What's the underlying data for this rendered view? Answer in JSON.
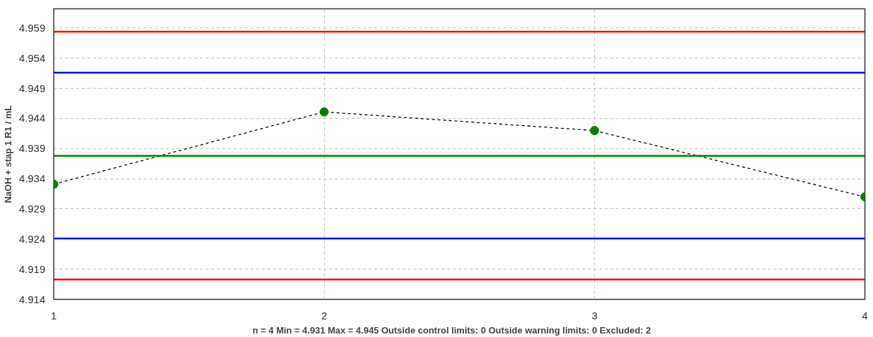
{
  "chart_data": {
    "type": "line",
    "xlabel": "n = 4  Min = 4.931  Max = 4.945   Outside control limits: 0  Outside warning limits: 0  Excluded: 2",
    "ylabel": "NaOH + stap 1 R1 / mL",
    "x": [
      1,
      2,
      3,
      4
    ],
    "series": [
      {
        "color": "#008000",
        "values": [
          4.9331,
          4.9451,
          4.942,
          4.931
        ]
      }
    ],
    "xlim": [
      1,
      4
    ],
    "xticks": [
      1,
      2,
      3,
      4
    ],
    "ylim": [
      4.914,
      4.9622
    ],
    "yticks": [
      4.914,
      4.919,
      4.924,
      4.929,
      4.934,
      4.939,
      4.944,
      4.949,
      4.954,
      4.959
    ],
    "ref_lines": [
      {
        "axis": "y",
        "value": 4.9584,
        "color": "#ff0000"
      },
      {
        "axis": "y",
        "value": 4.9516,
        "color": "#0000ff"
      },
      {
        "axis": "y",
        "value": 4.9378,
        "color": "#008000"
      },
      {
        "axis": "y",
        "value": 4.9241,
        "color": "#0000ff"
      },
      {
        "axis": "y",
        "value": 4.9173,
        "color": "#ff0000"
      }
    ],
    "grid": true,
    "marker": "circle",
    "line_style": "dashed"
  }
}
